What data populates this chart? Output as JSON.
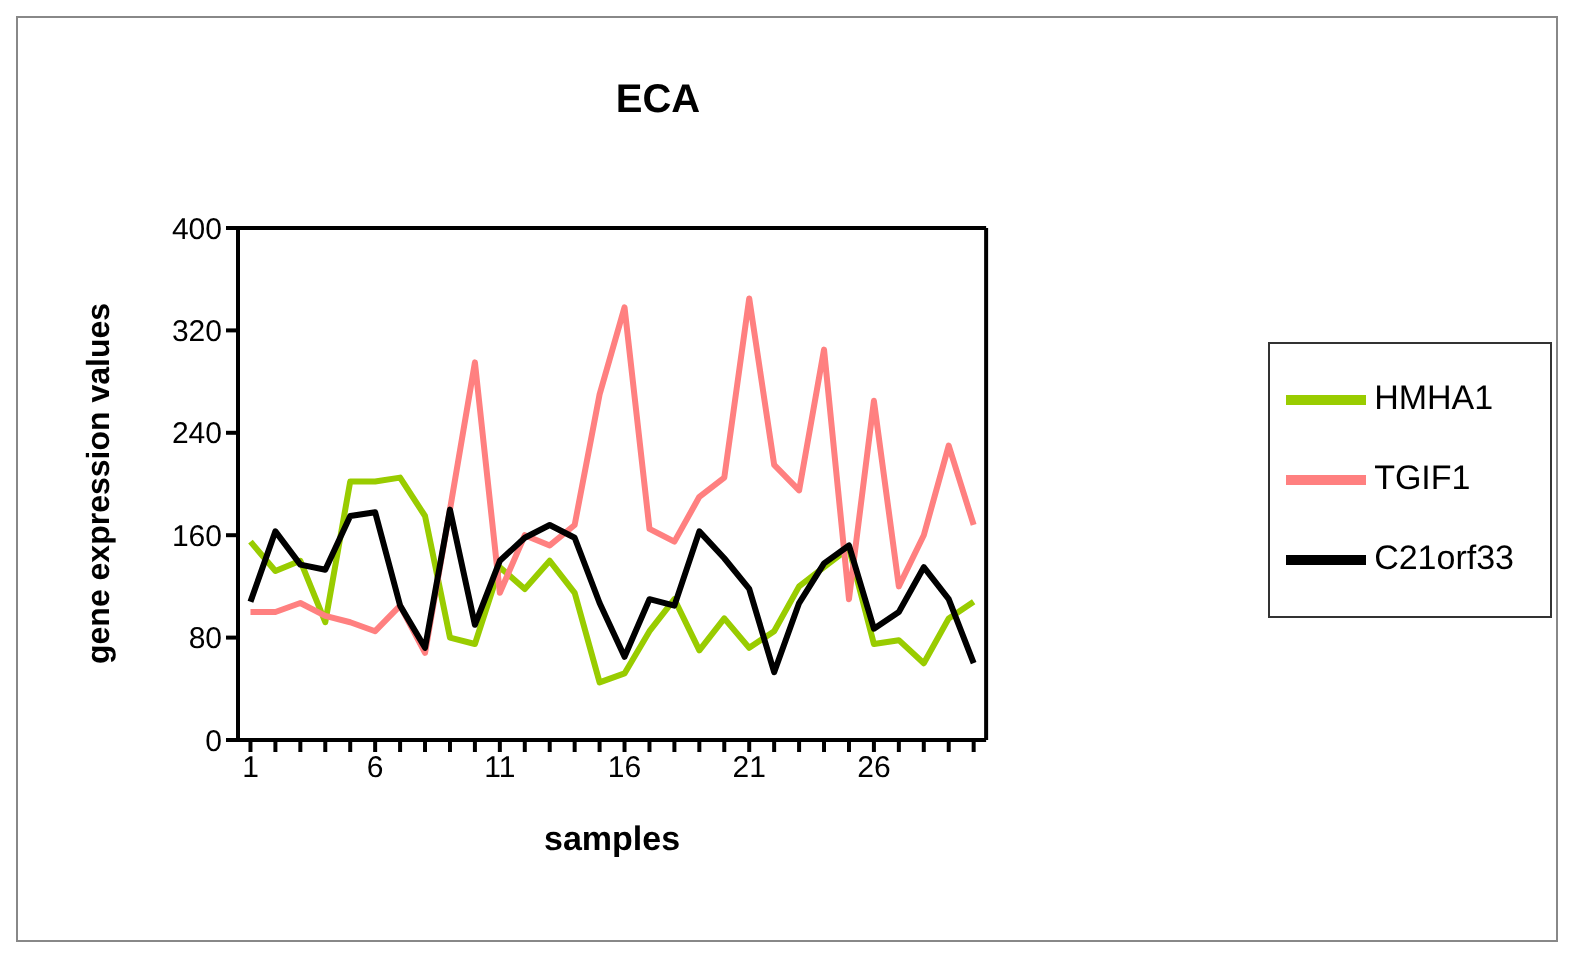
{
  "chart_data": {
    "type": "line",
    "title": "ECA",
    "xlabel": "samples",
    "ylabel": "gene expression values",
    "x": [
      1,
      2,
      3,
      4,
      5,
      6,
      7,
      8,
      9,
      10,
      11,
      12,
      13,
      14,
      15,
      16,
      17,
      18,
      19,
      20,
      21,
      22,
      23,
      24,
      25,
      26,
      27,
      28,
      29,
      30
    ],
    "xlim": [
      0.5,
      30.5
    ],
    "xticks": [
      1,
      {
        "value": 2,
        "label": null
      },
      {
        "value": 3,
        "label": null
      },
      {
        "value": 4,
        "label": null
      },
      {
        "value": 5,
        "label": null
      },
      6,
      {
        "value": 7,
        "label": null
      },
      {
        "value": 8,
        "label": null
      },
      {
        "value": 9,
        "label": null
      },
      {
        "value": 10,
        "label": null
      },
      11,
      {
        "value": 12,
        "label": null
      },
      {
        "value": 13,
        "label": null
      },
      {
        "value": 14,
        "label": null
      },
      {
        "value": 15,
        "label": null
      },
      16,
      {
        "value": 17,
        "label": null
      },
      {
        "value": 18,
        "label": null
      },
      {
        "value": 19,
        "label": null
      },
      {
        "value": 20,
        "label": null
      },
      21,
      {
        "value": 22,
        "label": null
      },
      {
        "value": 23,
        "label": null
      },
      {
        "value": 24,
        "label": null
      },
      {
        "value": 25,
        "label": null
      },
      26,
      {
        "value": 27,
        "label": null
      },
      {
        "value": 28,
        "label": null
      },
      {
        "value": 29,
        "label": null
      },
      {
        "value": 30,
        "label": null
      }
    ],
    "ylim": [
      0,
      400
    ],
    "yticks": [
      0,
      80,
      160,
      240,
      320,
      400
    ],
    "grid": false,
    "legend": "right",
    "marker": "none",
    "line_style": "solid",
    "series": [
      {
        "name": "HMHA1",
        "color": "#99cc00",
        "values": [
          155,
          132,
          140,
          92,
          202,
          202,
          205,
          175,
          80,
          75,
          135,
          118,
          140,
          115,
          45,
          52,
          85,
          110,
          70,
          95,
          72,
          85,
          120,
          135,
          150,
          75,
          78,
          60,
          95,
          108
        ]
      },
      {
        "name": "TGIF1",
        "color": "#ff8080",
        "values": [
          100,
          100,
          107,
          97,
          92,
          85,
          105,
          68,
          180,
          295,
          115,
          160,
          152,
          168,
          270,
          338,
          165,
          155,
          190,
          205,
          345,
          215,
          195,
          305,
          110,
          265,
          120,
          160,
          230,
          168
        ]
      },
      {
        "name": "C21orf33",
        "color": "#000000",
        "values": [
          108,
          163,
          137,
          133,
          175,
          178,
          105,
          72,
          180,
          90,
          140,
          158,
          168,
          158,
          107,
          65,
          110,
          105,
          163,
          142,
          118,
          53,
          107,
          138,
          152,
          87,
          100,
          135,
          110,
          60
        ]
      }
    ]
  }
}
